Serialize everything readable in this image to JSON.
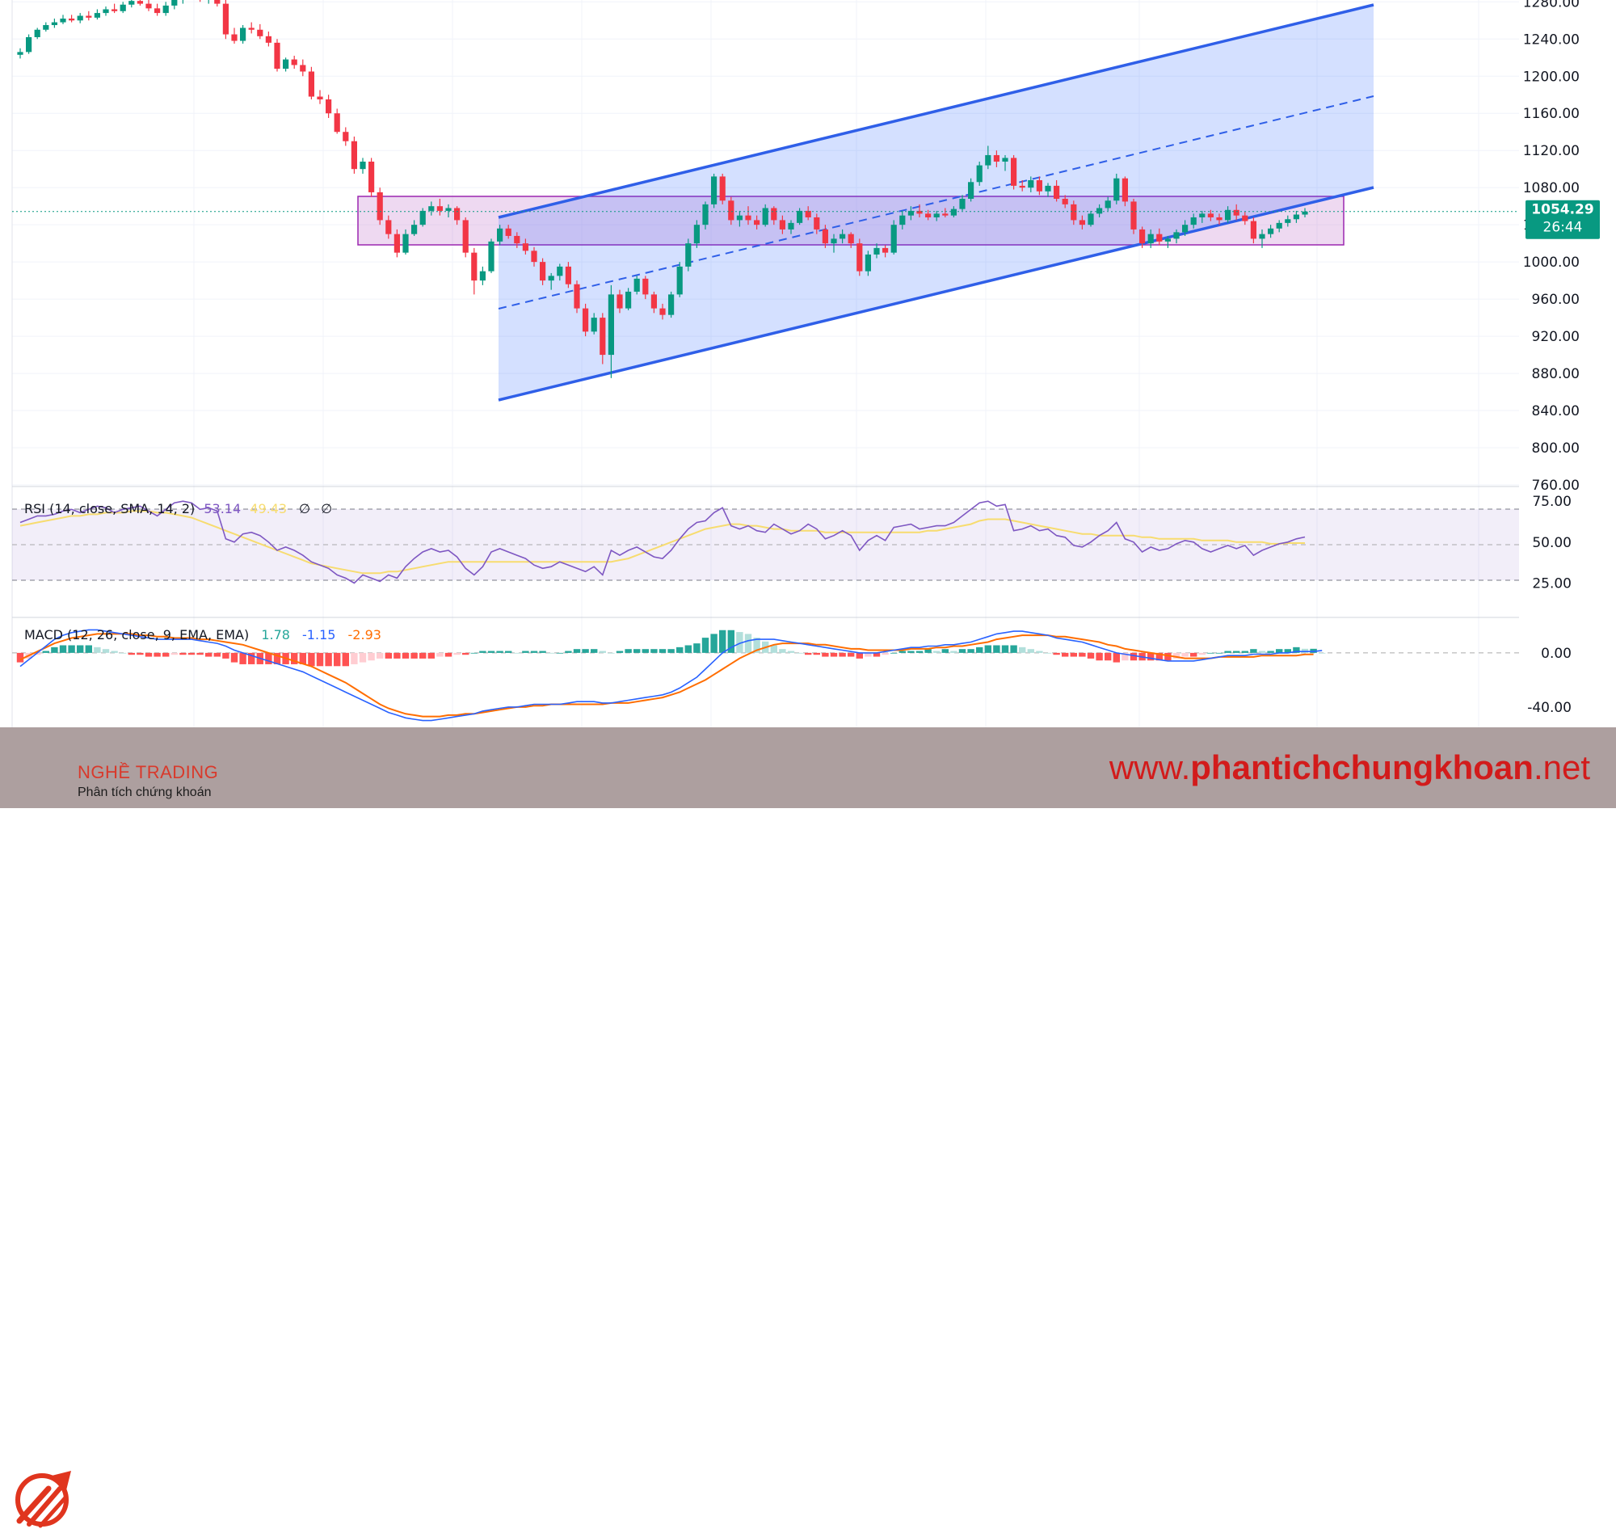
{
  "chart_data": {
    "type": "candlestick",
    "price_axis": {
      "ticks": [
        "760.00",
        "800.00",
        "840.00",
        "880.00",
        "920.00",
        "960.00",
        "1000.00",
        "1040.00",
        "1080.00",
        "1120.00",
        "1160.00",
        "1200.00",
        "1240.00",
        "1280.00"
      ],
      "range": [
        760,
        1282
      ]
    },
    "current_price": {
      "value": "1054.29",
      "countdown": "26:44",
      "color": "#089981"
    },
    "candles": [
      [
        1223,
        1230,
        1219,
        1226
      ],
      [
        1226,
        1245,
        1224,
        1242
      ],
      [
        1242,
        1252,
        1240,
        1250
      ],
      [
        1250,
        1258,
        1248,
        1255
      ],
      [
        1255,
        1262,
        1252,
        1258
      ],
      [
        1258,
        1266,
        1256,
        1262
      ],
      [
        1262,
        1266,
        1258,
        1260
      ],
      [
        1260,
        1268,
        1257,
        1265
      ],
      [
        1265,
        1270,
        1260,
        1263
      ],
      [
        1263,
        1272,
        1261,
        1268
      ],
      [
        1268,
        1275,
        1265,
        1272
      ],
      [
        1272,
        1278,
        1268,
        1270
      ],
      [
        1270,
        1280,
        1268,
        1277
      ],
      [
        1277,
        1285,
        1274,
        1281
      ],
      [
        1281,
        1286,
        1276,
        1278
      ],
      [
        1278,
        1282,
        1270,
        1273
      ],
      [
        1273,
        1278,
        1265,
        1268
      ],
      [
        1268,
        1280,
        1265,
        1276
      ],
      [
        1276,
        1285,
        1272,
        1282
      ],
      [
        1282,
        1295,
        1278,
        1290
      ],
      [
        1290,
        1296,
        1285,
        1286
      ],
      [
        1286,
        1292,
        1280,
        1284
      ],
      [
        1284,
        1290,
        1278,
        1286
      ],
      [
        1286,
        1290,
        1275,
        1278
      ],
      [
        1278,
        1282,
        1240,
        1245
      ],
      [
        1245,
        1252,
        1235,
        1238
      ],
      [
        1238,
        1255,
        1235,
        1252
      ],
      [
        1252,
        1258,
        1246,
        1250
      ],
      [
        1250,
        1256,
        1240,
        1243
      ],
      [
        1243,
        1248,
        1232,
        1236
      ],
      [
        1236,
        1240,
        1205,
        1208
      ],
      [
        1208,
        1220,
        1205,
        1218
      ],
      [
        1218,
        1222,
        1208,
        1212
      ],
      [
        1212,
        1218,
        1200,
        1205
      ],
      [
        1205,
        1210,
        1175,
        1178
      ],
      [
        1178,
        1185,
        1170,
        1175
      ],
      [
        1175,
        1180,
        1155,
        1160
      ],
      [
        1160,
        1165,
        1138,
        1140
      ],
      [
        1140,
        1145,
        1125,
        1130
      ],
      [
        1130,
        1135,
        1095,
        1100
      ],
      [
        1100,
        1112,
        1095,
        1108
      ],
      [
        1108,
        1112,
        1070,
        1075
      ],
      [
        1075,
        1080,
        1040,
        1045
      ],
      [
        1045,
        1050,
        1025,
        1030
      ],
      [
        1030,
        1035,
        1005,
        1010
      ],
      [
        1010,
        1035,
        1008,
        1030
      ],
      [
        1030,
        1045,
        1028,
        1040
      ],
      [
        1040,
        1058,
        1038,
        1055
      ],
      [
        1055,
        1065,
        1050,
        1060
      ],
      [
        1060,
        1068,
        1050,
        1055
      ],
      [
        1055,
        1062,
        1048,
        1058
      ],
      [
        1058,
        1060,
        1040,
        1045
      ],
      [
        1045,
        1048,
        1005,
        1010
      ],
      [
        1010,
        1015,
        965,
        980
      ],
      [
        980,
        995,
        975,
        990
      ],
      [
        990,
        1025,
        988,
        1022
      ],
      [
        1022,
        1040,
        1018,
        1036
      ],
      [
        1036,
        1040,
        1025,
        1028
      ],
      [
        1028,
        1032,
        1015,
        1020
      ],
      [
        1020,
        1025,
        1008,
        1012
      ],
      [
        1012,
        1016,
        995,
        1000
      ],
      [
        1000,
        1004,
        975,
        980
      ],
      [
        980,
        988,
        970,
        985
      ],
      [
        985,
        998,
        980,
        995
      ],
      [
        995,
        1000,
        972,
        976
      ],
      [
        976,
        980,
        945,
        950
      ],
      [
        950,
        955,
        920,
        925
      ],
      [
        925,
        945,
        922,
        940
      ],
      [
        940,
        945,
        890,
        900
      ],
      [
        900,
        975,
        875,
        965
      ],
      [
        965,
        970,
        945,
        950
      ],
      [
        950,
        972,
        948,
        968
      ],
      [
        968,
        985,
        965,
        982
      ],
      [
        982,
        985,
        960,
        965
      ],
      [
        965,
        968,
        945,
        950
      ],
      [
        950,
        955,
        938,
        943
      ],
      [
        943,
        968,
        940,
        965
      ],
      [
        965,
        1000,
        962,
        995
      ],
      [
        995,
        1025,
        990,
        1020
      ],
      [
        1020,
        1045,
        1015,
        1040
      ],
      [
        1040,
        1065,
        1035,
        1062
      ],
      [
        1062,
        1095,
        1058,
        1092
      ],
      [
        1092,
        1095,
        1062,
        1066
      ],
      [
        1066,
        1070,
        1040,
        1045
      ],
      [
        1045,
        1055,
        1038,
        1050
      ],
      [
        1050,
        1060,
        1040,
        1045
      ],
      [
        1045,
        1050,
        1035,
        1040
      ],
      [
        1040,
        1062,
        1038,
        1058
      ],
      [
        1058,
        1060,
        1040,
        1045
      ],
      [
        1045,
        1050,
        1030,
        1035
      ],
      [
        1035,
        1045,
        1030,
        1042
      ],
      [
        1042,
        1058,
        1040,
        1055
      ],
      [
        1055,
        1060,
        1045,
        1048
      ],
      [
        1048,
        1052,
        1030,
        1035
      ],
      [
        1035,
        1040,
        1015,
        1020
      ],
      [
        1020,
        1030,
        1010,
        1025
      ],
      [
        1025,
        1035,
        1020,
        1030
      ],
      [
        1030,
        1032,
        1015,
        1020
      ],
      [
        1020,
        1025,
        985,
        990
      ],
      [
        990,
        1012,
        985,
        1008
      ],
      [
        1008,
        1020,
        1004,
        1015
      ],
      [
        1015,
        1018,
        1005,
        1010
      ],
      [
        1010,
        1045,
        1008,
        1040
      ],
      [
        1040,
        1055,
        1035,
        1050
      ],
      [
        1050,
        1060,
        1045,
        1055
      ],
      [
        1055,
        1062,
        1048,
        1052
      ],
      [
        1052,
        1056,
        1045,
        1048
      ],
      [
        1048,
        1055,
        1044,
        1052
      ],
      [
        1052,
        1058,
        1048,
        1050
      ],
      [
        1050,
        1060,
        1048,
        1057
      ],
      [
        1057,
        1072,
        1055,
        1068
      ],
      [
        1068,
        1090,
        1065,
        1086
      ],
      [
        1086,
        1108,
        1082,
        1104
      ],
      [
        1104,
        1125,
        1100,
        1115
      ],
      [
        1115,
        1120,
        1102,
        1108
      ],
      [
        1108,
        1115,
        1098,
        1112
      ],
      [
        1112,
        1115,
        1078,
        1082
      ],
      [
        1082,
        1088,
        1076,
        1080
      ],
      [
        1080,
        1092,
        1075,
        1088
      ],
      [
        1088,
        1092,
        1072,
        1076
      ],
      [
        1076,
        1085,
        1070,
        1082
      ],
      [
        1082,
        1088,
        1065,
        1068
      ],
      [
        1068,
        1072,
        1058,
        1062
      ],
      [
        1062,
        1066,
        1040,
        1045
      ],
      [
        1045,
        1050,
        1035,
        1040
      ],
      [
        1040,
        1055,
        1038,
        1052
      ],
      [
        1052,
        1062,
        1048,
        1058
      ],
      [
        1058,
        1070,
        1055,
        1066
      ],
      [
        1066,
        1095,
        1062,
        1090
      ],
      [
        1090,
        1092,
        1060,
        1065
      ],
      [
        1065,
        1068,
        1030,
        1035
      ],
      [
        1035,
        1038,
        1015,
        1020
      ],
      [
        1020,
        1035,
        1015,
        1030
      ],
      [
        1030,
        1036,
        1018,
        1022
      ],
      [
        1022,
        1028,
        1015,
        1025
      ],
      [
        1025,
        1035,
        1020,
        1032
      ],
      [
        1032,
        1045,
        1028,
        1040
      ],
      [
        1040,
        1052,
        1036,
        1048
      ],
      [
        1048,
        1055,
        1042,
        1052
      ],
      [
        1052,
        1056,
        1044,
        1048
      ],
      [
        1048,
        1052,
        1040,
        1045
      ],
      [
        1045,
        1060,
        1042,
        1056
      ],
      [
        1056,
        1062,
        1045,
        1050
      ],
      [
        1050,
        1054,
        1040,
        1044
      ],
      [
        1044,
        1048,
        1020,
        1025
      ],
      [
        1025,
        1035,
        1015,
        1030
      ],
      [
        1030,
        1040,
        1026,
        1036
      ],
      [
        1036,
        1045,
        1032,
        1042
      ],
      [
        1042,
        1050,
        1038,
        1046
      ],
      [
        1046,
        1055,
        1042,
        1051
      ],
      [
        1051,
        1058,
        1048,
        1054.29
      ]
    ],
    "rsi": {
      "title": "RSI (14, close, SMA, 14, 2)",
      "value": "53.14",
      "ma_value": "49.43",
      "extras": [
        "∅",
        "∅"
      ],
      "ticks": [
        "25.00",
        "50.00",
        "75.00"
      ],
      "range": [
        5,
        83
      ],
      "upper": 70,
      "lower": 30,
      "values": [
        62,
        64,
        66,
        66,
        67,
        69,
        70,
        68,
        70,
        72,
        71,
        68,
        70,
        71,
        72,
        69,
        66,
        70,
        74,
        75,
        74,
        70,
        71,
        69,
        52,
        50,
        55,
        56,
        54,
        50,
        45,
        47,
        45,
        42,
        38,
        36,
        34,
        30,
        28,
        25,
        30,
        28,
        26,
        30,
        28,
        35,
        40,
        44,
        46,
        44,
        45,
        41,
        34,
        30,
        35,
        44,
        46,
        44,
        42,
        40,
        36,
        34,
        35,
        38,
        36,
        34,
        32,
        35,
        30,
        45,
        42,
        45,
        47,
        44,
        41,
        40,
        45,
        52,
        58,
        62,
        63,
        68,
        71,
        60,
        58,
        60,
        57,
        56,
        61,
        58,
        55,
        57,
        61,
        58,
        52,
        54,
        57,
        54,
        45,
        51,
        54,
        51,
        59,
        60,
        61,
        58,
        59,
        60,
        60,
        62,
        66,
        70,
        74,
        75,
        72,
        73,
        57,
        58,
        60,
        57,
        58,
        54,
        53,
        48,
        47,
        50,
        54,
        57,
        62,
        52,
        50,
        44,
        47,
        45,
        46,
        49,
        51,
        50,
        46,
        44,
        46,
        48,
        46,
        48,
        42,
        45,
        47,
        49,
        50,
        52,
        53.14
      ],
      "ma": [
        60,
        61,
        62,
        63,
        64,
        65,
        66,
        66,
        67,
        67,
        68,
        68,
        68,
        69,
        69,
        69,
        68,
        68,
        67,
        66,
        65,
        63,
        61,
        59,
        57,
        55,
        53,
        51,
        49,
        47,
        45,
        43,
        41,
        39,
        37,
        36,
        35,
        34,
        33,
        32,
        31,
        31,
        31,
        32,
        32,
        33,
        34,
        35,
        36,
        37,
        38,
        38,
        38,
        38,
        38,
        38,
        38,
        38,
        38,
        38,
        38,
        38,
        38,
        38,
        38,
        38,
        38,
        38,
        38,
        38,
        39,
        40,
        42,
        44,
        46,
        48,
        50,
        52,
        54,
        56,
        58,
        59,
        60,
        61,
        61,
        60,
        60,
        59,
        58,
        58,
        57,
        57,
        57,
        57,
        56,
        56,
        56,
        56,
        56,
        56,
        56,
        56,
        56,
        56,
        56,
        56,
        57,
        57,
        58,
        59,
        60,
        61,
        63,
        64,
        64,
        64,
        63,
        62,
        61,
        60,
        59,
        58,
        57,
        56,
        55,
        55,
        54,
        54,
        54,
        54,
        54,
        53,
        53,
        52,
        52,
        52,
        52,
        52,
        51,
        51,
        51,
        51,
        50,
        50,
        50,
        50,
        49,
        49,
        49.43,
        49.43,
        49.43
      ],
      "colors": {
        "line": "#7e57c2",
        "ma": "#f7dc6f"
      }
    },
    "macd": {
      "title": "MACD (12, 26, close, 9, EMA, EMA)",
      "values": [
        "1.78",
        "-1.15",
        "-2.93"
      ],
      "ticks": [
        "-40.00",
        "0.00"
      ],
      "range": [
        -55,
        25
      ],
      "macd_line": [
        -10,
        -5,
        0,
        5,
        10,
        13,
        15,
        16,
        17,
        17,
        16,
        15,
        14,
        13,
        12,
        11,
        10,
        10,
        10,
        10,
        10,
        9,
        8,
        7,
        5,
        2,
        0,
        -2,
        -4,
        -6,
        -8,
        -10,
        -12,
        -14,
        -17,
        -20,
        -23,
        -26,
        -29,
        -32,
        -35,
        -38,
        -41,
        -44,
        -46,
        -48,
        -49,
        -50,
        -50,
        -49,
        -48,
        -47,
        -46,
        -45,
        -43,
        -42,
        -41,
        -40,
        -40,
        -39,
        -38,
        -38,
        -38,
        -38,
        -37,
        -36,
        -36,
        -36,
        -37,
        -37,
        -36,
        -35,
        -34,
        -33,
        -32,
        -31,
        -29,
        -26,
        -22,
        -18,
        -12,
        -6,
        0,
        4,
        7,
        9,
        10,
        10,
        10,
        9,
        8,
        7,
        6,
        5,
        4,
        3,
        2,
        1,
        0,
        0,
        0,
        1,
        2,
        3,
        4,
        4,
        5,
        5,
        6,
        6,
        7,
        8,
        10,
        12,
        14,
        15,
        16,
        16,
        15,
        14,
        13,
        11,
        10,
        9,
        8,
        6,
        4,
        2,
        0,
        -1,
        -2,
        -3,
        -4,
        -5,
        -6,
        -6,
        -6,
        -6,
        -5,
        -4,
        -3,
        -2,
        -2,
        -2,
        -1,
        -1,
        -1,
        0,
        0,
        1,
        1,
        1,
        1.78
      ],
      "signal_line": [
        -5,
        -2,
        1,
        4,
        7,
        9,
        11,
        12,
        13,
        14,
        14,
        14,
        14,
        14,
        13,
        13,
        12,
        12,
        11,
        11,
        11,
        10,
        10,
        9,
        8,
        7,
        6,
        4,
        2,
        0,
        -2,
        -4,
        -6,
        -8,
        -10,
        -13,
        -16,
        -19,
        -22,
        -26,
        -30,
        -34,
        -38,
        -41,
        -43,
        -45,
        -46,
        -47,
        -47,
        -47,
        -46,
        -46,
        -45,
        -45,
        -44,
        -43,
        -42,
        -41,
        -40,
        -40,
        -39,
        -39,
        -38,
        -38,
        -38,
        -38,
        -38,
        -38,
        -38,
        -37,
        -37,
        -37,
        -36,
        -35,
        -34,
        -33,
        -31,
        -29,
        -26,
        -23,
        -20,
        -16,
        -12,
        -8,
        -4,
        -1,
        2,
        4,
        6,
        7,
        7,
        7,
        7,
        6,
        6,
        5,
        4,
        3,
        3,
        2,
        2,
        2,
        2,
        2,
        3,
        3,
        3,
        4,
        4,
        5,
        5,
        6,
        7,
        8,
        10,
        11,
        12,
        13,
        13,
        13,
        13,
        12,
        12,
        11,
        10,
        9,
        8,
        6,
        5,
        3,
        2,
        1,
        0,
        -1,
        -2,
        -3,
        -4,
        -4,
        -4,
        -4,
        -3,
        -3,
        -3,
        -3,
        -3,
        -2,
        -2,
        -2,
        -2,
        -2,
        -1.15,
        -1.15
      ],
      "colors": {
        "macd": "#2962ff",
        "signal": "#ff6d00",
        "hist_pos": "#26a69a",
        "hist_pos_light": "#b2dfdb",
        "hist_neg": "#ff5252",
        "hist_neg_light": "#ffcdd2"
      }
    }
  },
  "footer": {
    "brand_name": "NGHỀ TRADING",
    "brand_tagline": "Phân tích chứng khoán",
    "website_prefix": "www.",
    "website_domain": "phantichchungkhoan",
    "website_suffix": ".net",
    "logo_color": "#e0351e"
  }
}
